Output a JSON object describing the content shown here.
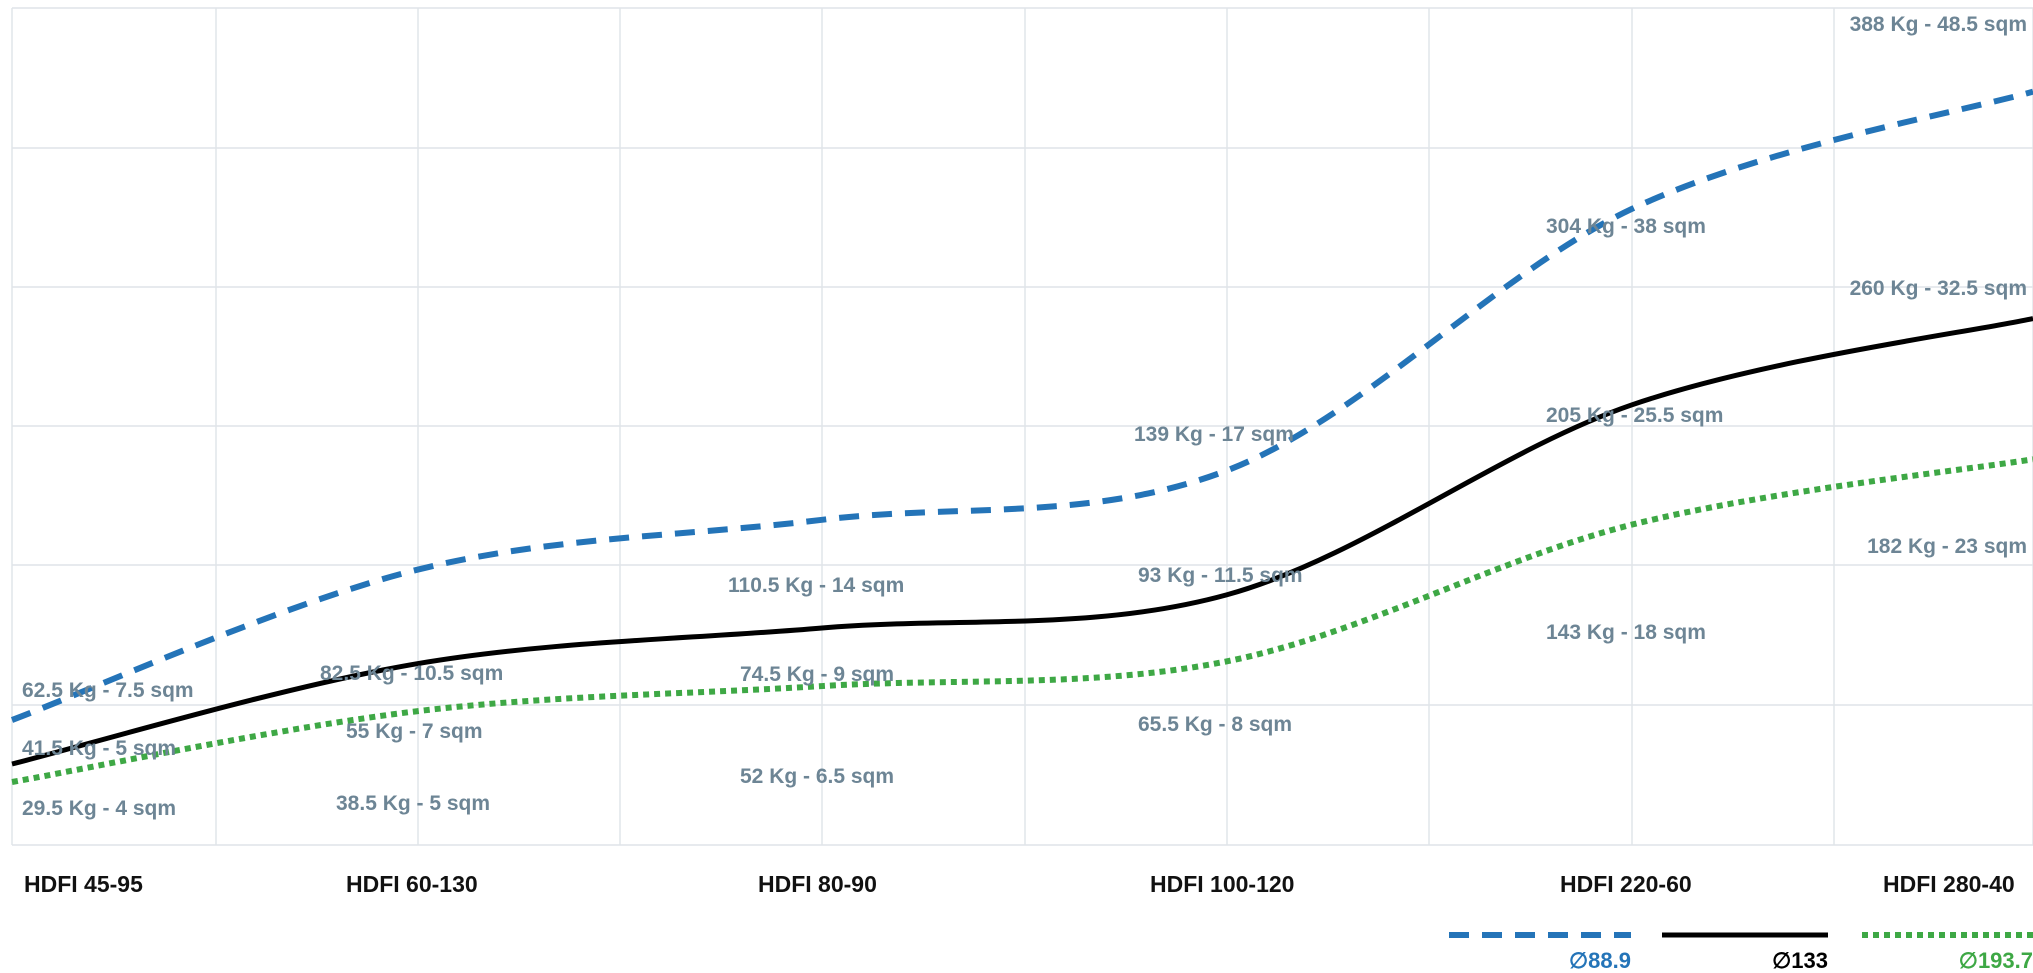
{
  "chart_data": {
    "type": "line",
    "categories": [
      "HDFI 45-95",
      "HDFI 60-130",
      "HDFI 80-90",
      "HDFI 100-120",
      "HDFI 220-60",
      "HDFI 280-40"
    ],
    "grid": true,
    "legend_position": "bottom-right",
    "series": [
      {
        "name": "∅88.9",
        "color": "#2474b8",
        "style": "dashed",
        "values": [
          62.5,
          82.5,
          110.5,
          139,
          304,
          388
        ],
        "labels": [
          "62.5 Kg - 7.5 sqm",
          "82.5 Kg - 10.5 sqm",
          "110.5 Kg - 14 sqm",
          "139 Kg - 17 sqm",
          "304 Kg - 38 sqm",
          "388 Kg - 48.5 sqm"
        ]
      },
      {
        "name": "∅133",
        "color": "#000000",
        "style": "solid",
        "values": [
          41.5,
          55,
          74.5,
          93,
          205,
          260
        ],
        "labels": [
          "41.5 Kg - 5 sqm",
          "55 Kg - 7 sqm",
          "74.5 Kg - 9 sqm",
          "93 Kg - 11.5 sqm",
          "205 Kg - 25.5 sqm",
          "260 Kg - 32.5 sqm"
        ]
      },
      {
        "name": "∅193.7",
        "color": "#3ea845",
        "style": "dotted",
        "values": [
          29.5,
          38.5,
          52,
          65.5,
          143,
          182
        ],
        "labels": [
          "29.5 Kg - 4 sqm",
          "38.5 Kg - 5 sqm",
          "52 Kg - 6.5 sqm",
          "65.5 Kg - 8 sqm",
          "143 Kg - 18 sqm",
          "182 Kg - 23 sqm"
        ]
      }
    ]
  }
}
